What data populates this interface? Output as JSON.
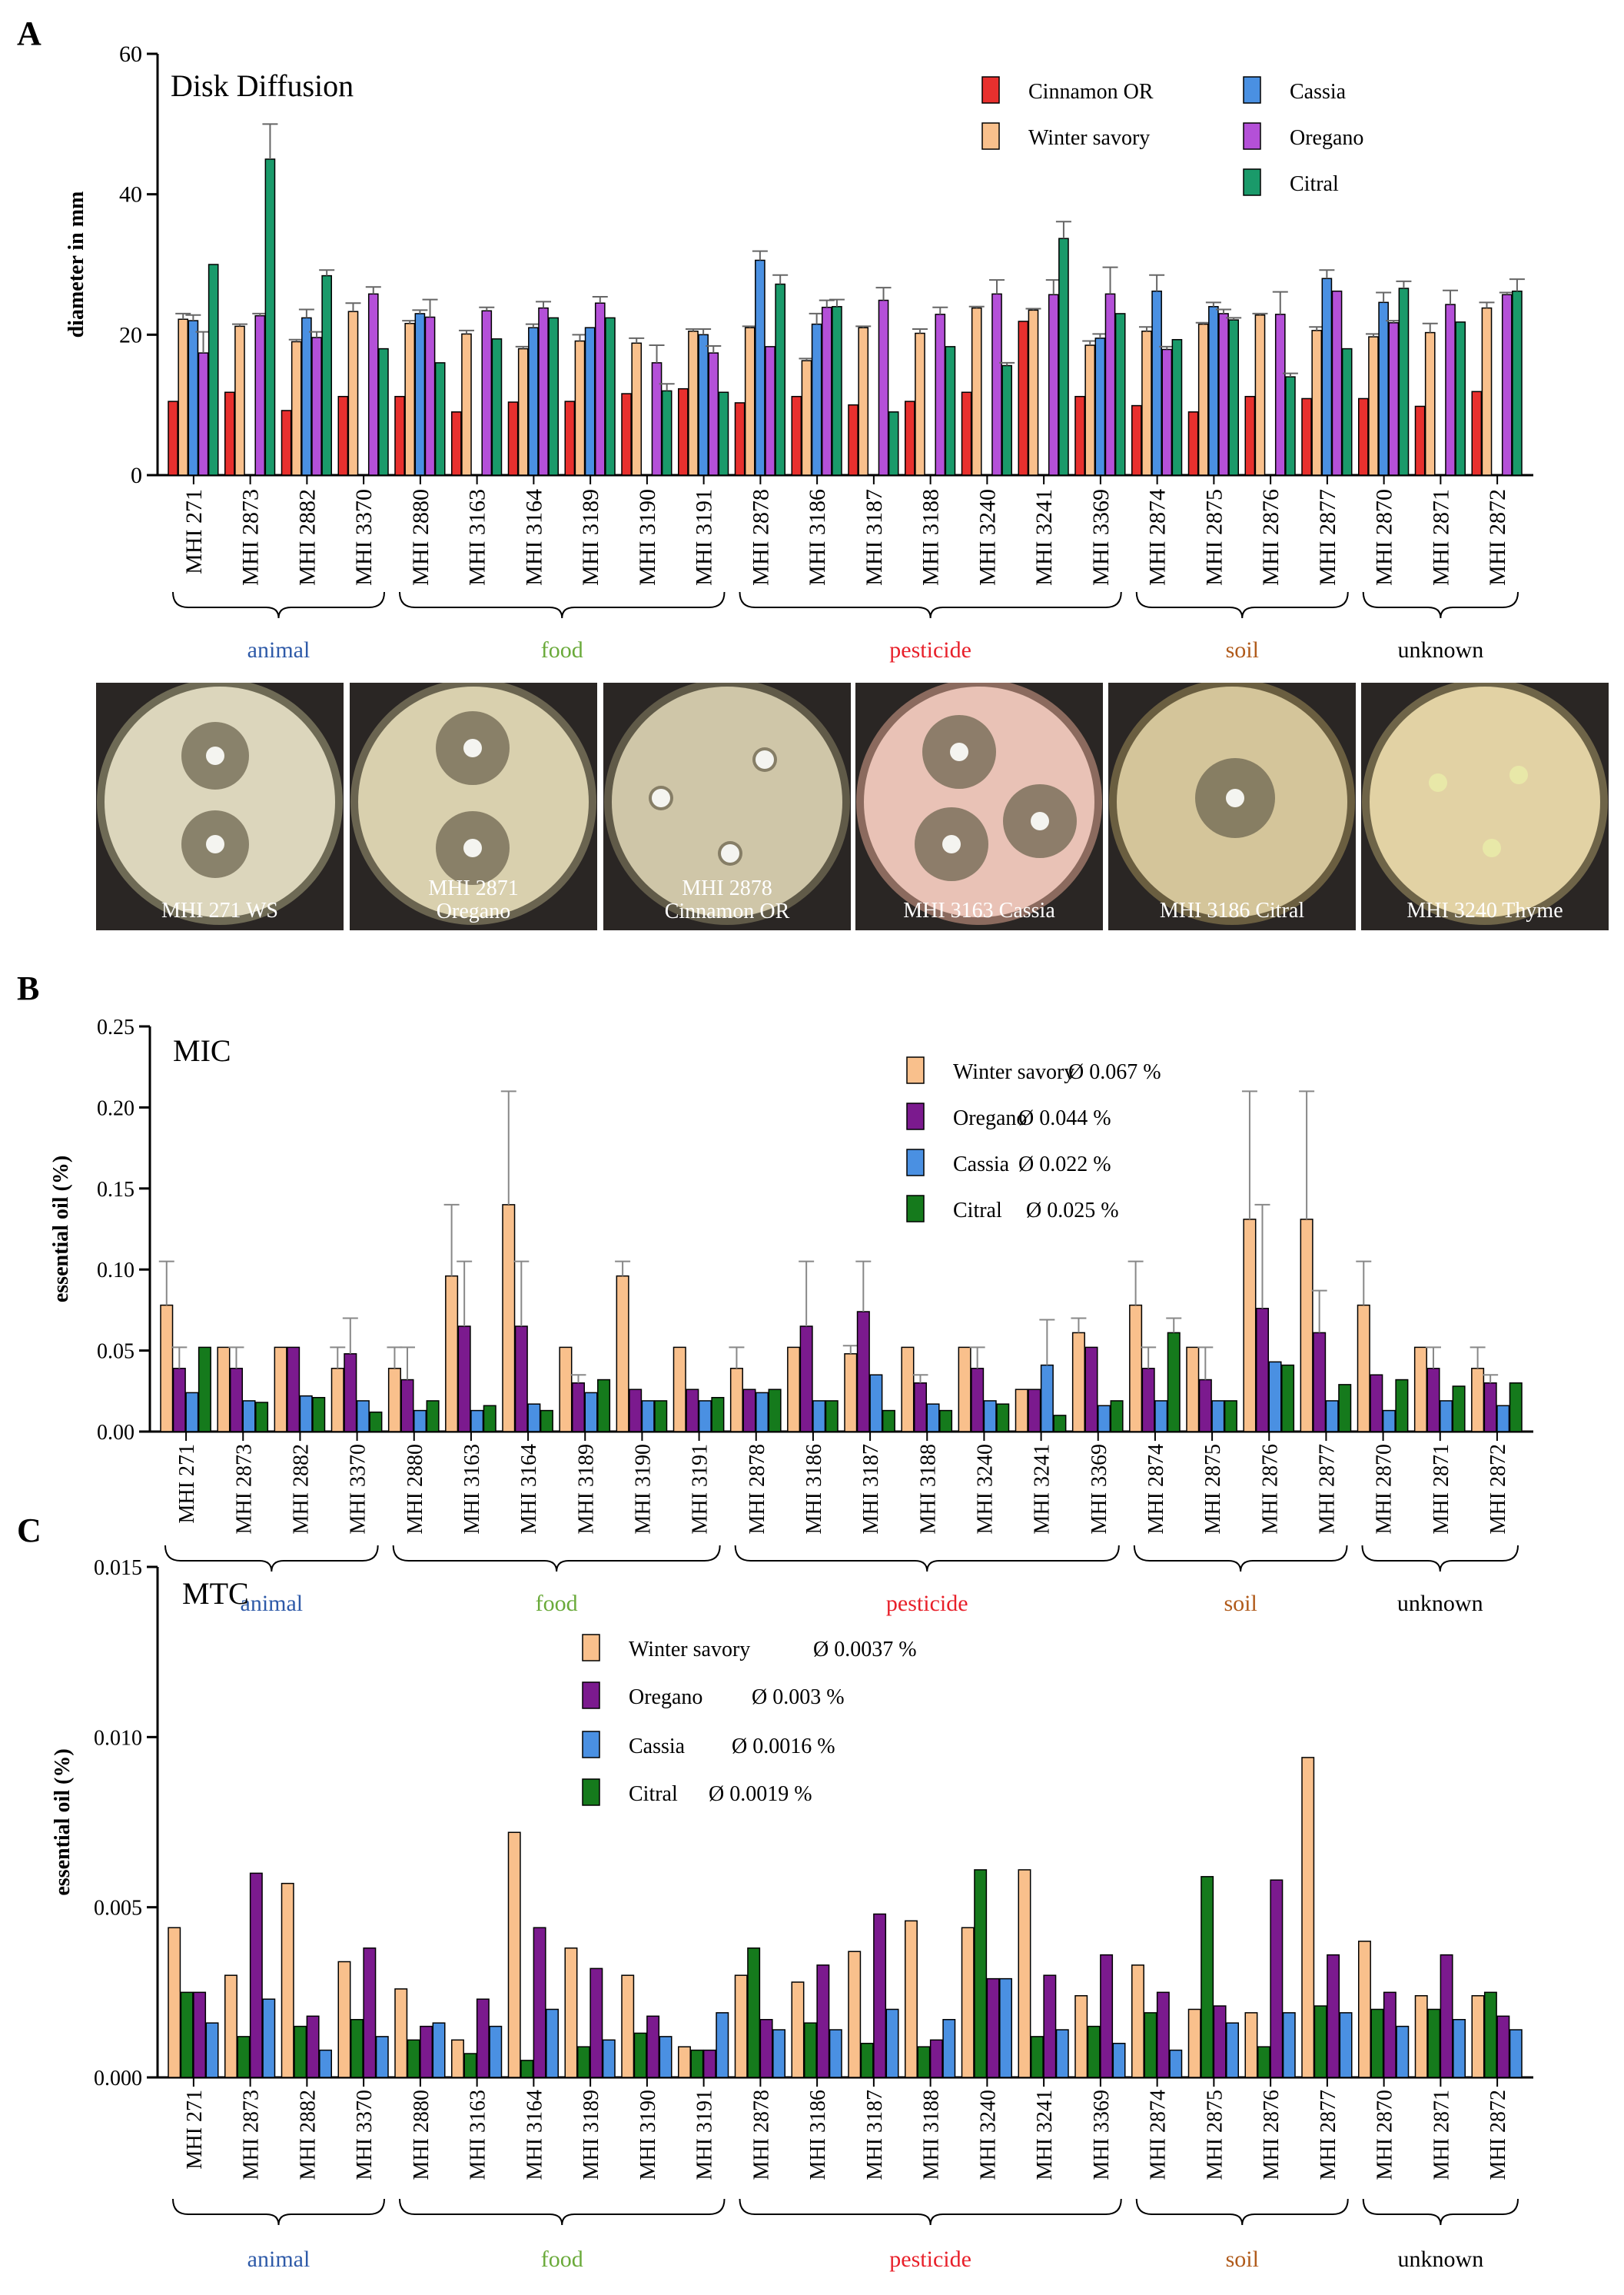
{
  "categories": [
    "animal",
    "food",
    "pesticide",
    "soil",
    "unknown"
  ],
  "category_colors": {
    "animal": "#2e5aa8",
    "food": "#6aaa3a",
    "pesticide": "#e8202a",
    "soil": "#b05a1a",
    "unknown": "#000000"
  },
  "panel_letters": [
    "A",
    "B",
    "C"
  ],
  "series_colors": {
    "Cinnamon OR": "#e8302e",
    "Winter savory": "#f9c08c",
    "Cassia": "#4a90e2",
    "Oregano": "#b450d8",
    "Citral": "#1a9a6a",
    "Oregano_dark": "#7b1a8e",
    "Citral_dark": "#157a1c"
  },
  "photos": [
    {
      "label": "MHI 271 WS",
      "bg": "#dcd6bc",
      "rim": "#6e6a55"
    },
    {
      "label": "MHI 2871\nOregano",
      "bg": "#d9d0ae",
      "rim": "#6a6450"
    },
    {
      "label": "MHI 2878\nCinnamon OR",
      "bg": "#cfc6a8",
      "rim": "#605a48"
    },
    {
      "label": "MHI 3163 Cassia",
      "bg": "#e9c2b6",
      "rim": "#8b6a5e"
    },
    {
      "label": "MHI 3186 Citral",
      "bg": "#d4c59a",
      "rim": "#6a5e40"
    },
    {
      "label": "MHI 3240 Thyme",
      "bg": "#e2d2a4",
      "rim": "#6e6448"
    }
  ],
  "chart_data": [
    {
      "panel": "A",
      "type": "bar",
      "title": "Disk Diffusion",
      "ylabel": "diameter in mm",
      "ylim": [
        0,
        60
      ],
      "yticks": [
        "0",
        "20",
        "40",
        "60"
      ],
      "categories": [
        "MHI 271",
        "MHI 2873",
        "MHI 2882",
        "MHI 3370",
        "MHI 2880",
        "MHI 3163",
        "MHI 3164",
        "MHI 3189",
        "MHI 3190",
        "MHI 3191",
        "MHI 2878",
        "MHI 3186",
        "MHI 3187",
        "MHI 3188",
        "MHI 3240",
        "MHI 3241",
        "MHI 3369",
        "MHI 2874",
        "MHI 2875",
        "MHI 2876",
        "MHI 2877",
        "MHI 2870",
        "MHI 2871",
        "MHI 2872"
      ],
      "groups": [
        {
          "name": "animal",
          "count": 4
        },
        {
          "name": "food",
          "count": 6
        },
        {
          "name": "pesticide",
          "count": 7
        },
        {
          "name": "soil",
          "count": 4
        },
        {
          "name": "unknown",
          "count": 3
        }
      ],
      "legend": [
        {
          "name": "Cinnamon OR"
        },
        {
          "name": "Winter savory"
        },
        {
          "name": "Cassia"
        },
        {
          "name": "Oregano"
        },
        {
          "name": "Citral"
        }
      ],
      "series": [
        {
          "name": "Cinnamon OR",
          "color": "#e8302e",
          "values": [
            10.5,
            11.8,
            9.2,
            11.2,
            11.2,
            9.0,
            10.4,
            10.5,
            11.6,
            12.3,
            10.3,
            11.2,
            10.0,
            10.5,
            11.8,
            21.9,
            11.2,
            9.9,
            9.0,
            11.2,
            10.9,
            10.9,
            9.8,
            11.9
          ],
          "errors": [
            0,
            0,
            0,
            0,
            0,
            0,
            0,
            0,
            0,
            0,
            0,
            0,
            0,
            0,
            0,
            0,
            0,
            0,
            0,
            0,
            0,
            0,
            0,
            0
          ]
        },
        {
          "name": "Winter savory",
          "color": "#f9c08c",
          "values": [
            22.2,
            21.2,
            19.0,
            23.3,
            21.6,
            20.1,
            18.0,
            19.1,
            18.8,
            20.5,
            21.0,
            16.3,
            21.0,
            20.2,
            23.8,
            23.5,
            18.5,
            20.5,
            21.5,
            22.8,
            20.6,
            19.7,
            20.3,
            23.8
          ],
          "errors": [
            0.8,
            0.3,
            0.3,
            1.2,
            0.4,
            0.5,
            0.3,
            0.9,
            0.7,
            0.3,
            0.2,
            0.3,
            0.2,
            0.6,
            0.2,
            0.2,
            0.6,
            0.6,
            0.2,
            0.2,
            0.5,
            0.4,
            1.3,
            0.8
          ]
        },
        {
          "name": "Cassia",
          "color": "#4a90e2",
          "values": [
            22.0,
            0,
            22.4,
            0,
            23.0,
            0,
            21.0,
            21.0,
            0,
            20.0,
            30.6,
            21.5,
            0,
            0,
            0,
            0,
            19.5,
            26.2,
            24.0,
            0,
            28.0,
            24.6,
            0,
            0
          ],
          "errors": [
            0.8,
            0,
            1.2,
            0,
            0.5,
            0,
            0.5,
            0,
            0,
            0.8,
            1.3,
            1.5,
            0,
            0,
            0,
            0,
            0.6,
            2.3,
            0.6,
            0,
            1.2,
            1.4,
            0,
            0
          ]
        },
        {
          "name": "Oregano",
          "color": "#b450d8",
          "values": [
            17.4,
            22.7,
            19.6,
            25.8,
            22.5,
            23.4,
            23.8,
            24.5,
            16.0,
            17.4,
            18.3,
            23.9,
            24.9,
            22.9,
            25.8,
            25.7,
            25.8,
            17.9,
            23.0,
            22.9,
            26.2,
            21.7,
            24.3,
            25.7
          ],
          "errors": [
            3.0,
            0.3,
            0.8,
            1.0,
            2.5,
            0.5,
            0.9,
            0.9,
            2.5,
            1.0,
            0,
            1.0,
            1.8,
            1.0,
            2.0,
            2.1,
            3.8,
            0.4,
            0.6,
            3.2,
            0,
            0.3,
            2.0,
            0.3
          ]
        },
        {
          "name": "Citral",
          "color": "#1a9a6a",
          "values": [
            30.0,
            45.0,
            28.4,
            18.0,
            16.0,
            19.4,
            22.4,
            22.4,
            12.0,
            11.8,
            27.2,
            24.0,
            9.0,
            18.3,
            15.6,
            33.7,
            23.0,
            19.3,
            22.1,
            14.0,
            18.0,
            26.6,
            21.8,
            26.2
          ],
          "errors": [
            0,
            5.0,
            0.8,
            0,
            0,
            0,
            0,
            0,
            1.0,
            0,
            1.3,
            1.0,
            0,
            0,
            0.4,
            2.4,
            0,
            0,
            0.3,
            0.5,
            0,
            1.0,
            0,
            1.7
          ]
        }
      ]
    },
    {
      "panel": "B",
      "type": "bar",
      "title": "MIC",
      "ylabel": "essential oil (%)",
      "ylim": [
        0,
        0.25
      ],
      "yticks": [
        "0.00",
        "0.05",
        "0.10",
        "0.15",
        "0.20",
        "0.25"
      ],
      "categories": [
        "MHI 271",
        "MHI 2873",
        "MHI 2882",
        "MHI 3370",
        "MHI 2880",
        "MHI 3163",
        "MHI 3164",
        "MHI 3189",
        "MHI 3190",
        "MHI 3191",
        "MHI 2878",
        "MHI 3186",
        "MHI 3187",
        "MHI 3188",
        "MHI 3240",
        "MHI 3241",
        "MHI 3369",
        "MHI 2874",
        "MHI 2875",
        "MHI 2876",
        "MHI 2877",
        "MHI 2870",
        "MHI 2871",
        "MHI 2872"
      ],
      "groups": [
        {
          "name": "animal",
          "count": 4
        },
        {
          "name": "food",
          "count": 6
        },
        {
          "name": "pesticide",
          "count": 7
        },
        {
          "name": "soil",
          "count": 4
        },
        {
          "name": "unknown",
          "count": 3
        }
      ],
      "legend": [
        {
          "name": "Winter savory",
          "avg": "Ø 0.067 %"
        },
        {
          "name": "Oregano",
          "avg": "Ø 0.044 %"
        },
        {
          "name": "Cassia",
          "avg": "Ø 0.022 %"
        },
        {
          "name": "Citral",
          "avg": "Ø 0.025 %"
        }
      ],
      "series": [
        {
          "name": "Winter savory",
          "color": "#f9c08c",
          "values": [
            0.078,
            0.052,
            0.052,
            0.039,
            0.039,
            0.096,
            0.14,
            0.052,
            0.096,
            0.052,
            0.039,
            0.052,
            0.048,
            0.052,
            0.052,
            0.026,
            0.061,
            0.078,
            0.052,
            0.131,
            0.131,
            0.078,
            0.052,
            0.039
          ],
          "errors": [
            0.027,
            0,
            0,
            0.013,
            0.013,
            0.044,
            0.07,
            0,
            0.009,
            0,
            0.013,
            0,
            0.005,
            0,
            0,
            0,
            0.009,
            0.027,
            0,
            0.079,
            0.079,
            0.027,
            0,
            0.013
          ]
        },
        {
          "name": "Oregano",
          "color": "#7b1a8e",
          "values": [
            0.039,
            0.039,
            0.052,
            0.048,
            0.032,
            0.065,
            0.065,
            0.03,
            0.026,
            0.026,
            0.026,
            0.065,
            0.074,
            0.03,
            0.039,
            0.026,
            0.052,
            0.039,
            0.032,
            0.076,
            0.061,
            0.035,
            0.039,
            0.03
          ],
          "errors": [
            0.013,
            0.013,
            0,
            0.022,
            0.02,
            0.04,
            0.04,
            0.005,
            0,
            0,
            0,
            0.04,
            0.031,
            0.005,
            0.013,
            0,
            0,
            0.013,
            0.02,
            0.064,
            0.026,
            0,
            0.013,
            0.005
          ]
        },
        {
          "name": "Cassia",
          "color": "#4a90e2",
          "values": [
            0.024,
            0.019,
            0.022,
            0.019,
            0.013,
            0.013,
            0.017,
            0.024,
            0.019,
            0.019,
            0.024,
            0.019,
            0.035,
            0.017,
            0.019,
            0.041,
            0.016,
            0.019,
            0.019,
            0.043,
            0.019,
            0.013,
            0.019,
            0.016
          ],
          "errors": [
            0,
            0,
            0,
            0,
            0,
            0,
            0,
            0,
            0,
            0,
            0,
            0,
            0,
            0,
            0,
            0.028,
            0,
            0,
            0,
            0,
            0,
            0,
            0,
            0
          ]
        },
        {
          "name": "Citral",
          "color": "#157a1c",
          "values": [
            0.052,
            0.018,
            0.021,
            0.012,
            0.019,
            0.016,
            0.013,
            0.032,
            0.019,
            0.021,
            0.026,
            0.019,
            0.013,
            0.013,
            0.017,
            0.01,
            0.019,
            0.061,
            0.019,
            0.041,
            0.029,
            0.032,
            0.028,
            0.03
          ],
          "errors": [
            0,
            0,
            0,
            0,
            0,
            0,
            0,
            0,
            0,
            0,
            0,
            0,
            0,
            0,
            0,
            0,
            0,
            0.009,
            0,
            0,
            0,
            0,
            0,
            0
          ]
        }
      ]
    },
    {
      "panel": "C",
      "type": "bar",
      "title": "MTC",
      "ylabel": "essential oil (%)",
      "ylim": [
        0,
        0.015
      ],
      "yticks": [
        "0.000",
        "0.005",
        "0.010",
        "0.015"
      ],
      "categories": [
        "MHI 271",
        "MHI 2873",
        "MHI 2882",
        "MHI 3370",
        "MHI 2880",
        "MHI 3163",
        "MHI 3164",
        "MHI 3189",
        "MHI 3190",
        "MHI 3191",
        "MHI 2878",
        "MHI 3186",
        "MHI 3187",
        "MHI 3188",
        "MHI 3240",
        "MHI 3241",
        "MHI 3369",
        "MHI 2874",
        "MHI 2875",
        "MHI 2876",
        "MHI 2877",
        "MHI 2870",
        "MHI 2871",
        "MHI 2872"
      ],
      "groups": [
        {
          "name": "animal",
          "count": 4
        },
        {
          "name": "food",
          "count": 6
        },
        {
          "name": "pesticide",
          "count": 7
        },
        {
          "name": "soil",
          "count": 4
        },
        {
          "name": "unknown",
          "count": 3
        }
      ],
      "legend": [
        {
          "name": "Winter savory",
          "avg": "Ø 0.0037 %"
        },
        {
          "name": "Oregano",
          "avg": "Ø 0.003 %"
        },
        {
          "name": "Cassia",
          "avg": "Ø 0.0016 %"
        },
        {
          "name": "Citral",
          "avg": "Ø 0.0019 %"
        }
      ],
      "series": [
        {
          "name": "Winter savory",
          "color": "#f9c08c",
          "values": [
            0.0044,
            0.003,
            0.0057,
            0.0034,
            0.0026,
            0.0011,
            0.0072,
            0.0038,
            0.003,
            0.0009,
            0.003,
            0.0028,
            0.0037,
            0.0046,
            0.0044,
            0.0061,
            0.0024,
            0.0033,
            0.002,
            0.0019,
            0.0094,
            0.004,
            0.0024,
            0.0024
          ]
        },
        {
          "name": "Citral",
          "color": "#157a1c",
          "values": [
            0.0025,
            0.0012,
            0.0015,
            0.0017,
            0.0011,
            0.0007,
            0.0005,
            0.0009,
            0.0013,
            0.0008,
            0.0038,
            0.0016,
            0.001,
            0.0009,
            0.0061,
            0.0012,
            0.0015,
            0.0019,
            0.0059,
            0.0009,
            0.0021,
            0.002,
            0.002,
            0.0025
          ]
        },
        {
          "name": "Oregano",
          "color": "#7b1a8e",
          "values": [
            0.0025,
            0.006,
            0.0018,
            0.0038,
            0.0015,
            0.0023,
            0.0044,
            0.0032,
            0.0018,
            0.0008,
            0.0017,
            0.0033,
            0.0048,
            0.0011,
            0.0029,
            0.003,
            0.0036,
            0.0025,
            0.0021,
            0.0058,
            0.0036,
            0.0025,
            0.0036,
            0.0018
          ]
        },
        {
          "name": "Cassia",
          "color": "#4a90e2",
          "values": [
            0.0016,
            0.0023,
            0.0008,
            0.0012,
            0.0016,
            0.0015,
            0.002,
            0.0011,
            0.0012,
            0.0019,
            0.0014,
            0.0014,
            0.002,
            0.0017,
            0.0029,
            0.0014,
            0.001,
            0.0008,
            0.0016,
            0.0019,
            0.0019,
            0.0015,
            0.0017,
            0.0014
          ]
        }
      ]
    }
  ]
}
